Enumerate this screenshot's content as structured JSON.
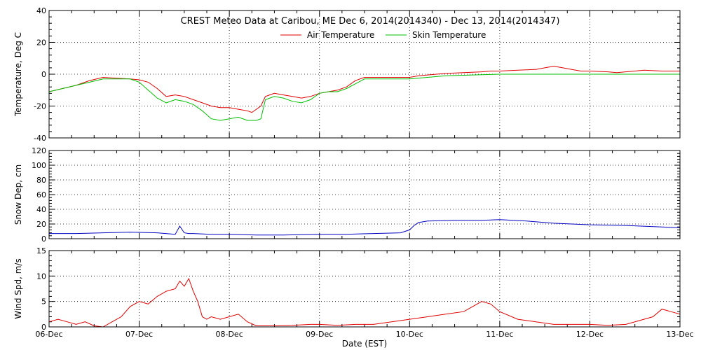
{
  "chart_data": {
    "type": "line",
    "title": "CREST Meteo Data at Caribou, ME   Dec  6, 2014(2014340) - Dec 13, 2014(2014347)",
    "xlabel": "Date (EST)",
    "x_ticks": [
      "06-Dec",
      "07-Dec",
      "08-Dec",
      "09-Dec",
      "10-Dec",
      "11-Dec",
      "12-Dec",
      "13-Dec"
    ],
    "x_range": [
      0,
      7
    ],
    "grid": true,
    "legend_placement": "top-center",
    "panels": [
      {
        "ylabel": "Temperature, Deg C",
        "ylim": [
          -40,
          40
        ],
        "y_ticks": [
          -40,
          -20,
          0,
          20,
          40
        ],
        "series": [
          {
            "name": "Air Temperature",
            "color": "#e00000",
            "x": [
              0,
              0.15,
              0.3,
              0.45,
              0.6,
              0.75,
              0.9,
              1.0,
              1.1,
              1.2,
              1.3,
              1.4,
              1.5,
              1.6,
              1.7,
              1.8,
              1.9,
              2.0,
              2.1,
              2.2,
              2.25,
              2.3,
              2.35,
              2.4,
              2.5,
              2.6,
              2.7,
              2.8,
              2.9,
              3.0,
              3.1,
              3.2,
              3.3,
              3.4,
              3.5,
              3.6,
              3.7,
              3.8,
              3.9,
              4.0,
              4.1,
              4.2,
              4.3,
              4.4,
              4.6,
              4.8,
              4.9,
              5.0,
              5.2,
              5.4,
              5.5,
              5.6,
              5.7,
              5.8,
              5.9,
              6.0,
              6.2,
              6.3,
              6.4,
              6.5,
              6.6,
              6.8,
              7.0
            ],
            "y": [
              -11,
              -9,
              -7,
              -4,
              -2,
              -2.5,
              -3,
              -3.5,
              -5,
              -9,
              -14,
              -13,
              -14,
              -16,
              -18,
              -20,
              -21,
              -21,
              -22,
              -23,
              -24,
              -22,
              -20,
              -14,
              -12,
              -13,
              -14,
              -15,
              -14,
              -12,
              -11,
              -10,
              -8,
              -4,
              -2,
              -2,
              -2,
              -2,
              -2,
              -2,
              -1,
              -0.5,
              0,
              0.5,
              1,
              1.5,
              2,
              2,
              2.5,
              3,
              4,
              5,
              4,
              3,
              2,
              2,
              1.5,
              1,
              1.5,
              2,
              2.5,
              2,
              2
            ]
          },
          {
            "name": "Skin Temperature",
            "color": "#00c000",
            "x": [
              0,
              0.15,
              0.3,
              0.45,
              0.6,
              0.75,
              0.9,
              1.0,
              1.1,
              1.2,
              1.3,
              1.4,
              1.5,
              1.6,
              1.7,
              1.8,
              1.9,
              2.0,
              2.1,
              2.2,
              2.3,
              2.35,
              2.4,
              2.5,
              2.6,
              2.7,
              2.8,
              2.9,
              3.0,
              3.1,
              3.2,
              3.3,
              3.4,
              3.5,
              3.6,
              3.8,
              4.0,
              4.2,
              4.4,
              5.0,
              6.0,
              7.0
            ],
            "y": [
              -11,
              -9,
              -7,
              -5,
              -3,
              -3,
              -3,
              -5,
              -10,
              -15,
              -18,
              -16,
              -17,
              -19,
              -23,
              -28,
              -29,
              -28,
              -27,
              -29,
              -29,
              -28,
              -16,
              -14,
              -15,
              -17,
              -18,
              -16,
              -12,
              -11,
              -11,
              -9,
              -6,
              -3,
              -3,
              -3,
              -3,
              -2,
              -1,
              0,
              0,
              0
            ]
          }
        ]
      },
      {
        "ylabel": "Snow Dep, cm",
        "ylim": [
          0,
          120
        ],
        "y_ticks": [
          0,
          20,
          40,
          60,
          80,
          100,
          120
        ],
        "series": [
          {
            "color": "#0000c0",
            "x": [
              0,
              0.3,
              0.6,
              0.9,
              1.2,
              1.4,
              1.45,
              1.5,
              1.55,
              1.6,
              1.8,
              2.0,
              2.3,
              2.6,
              3.0,
              3.3,
              3.6,
              3.9,
              4.0,
              4.05,
              4.1,
              4.2,
              4.5,
              4.8,
              5.0,
              5.3,
              5.6,
              6.0,
              6.4,
              6.8,
              7.0
            ],
            "y": [
              7,
              7,
              8,
              9,
              8,
              6,
              17,
              8,
              7,
              7,
              6,
              6,
              5,
              5,
              6,
              6,
              7,
              8,
              12,
              18,
              22,
              24,
              25,
              25,
              26,
              24,
              21,
              19,
              18,
              16,
              15
            ]
          }
        ]
      },
      {
        "ylabel": "Wind Spd, m/s",
        "ylim": [
          0,
          15
        ],
        "y_ticks": [
          0,
          5,
          10,
          15
        ],
        "series": [
          {
            "color": "#e00000",
            "x": [
              0,
              0.1,
              0.2,
              0.3,
              0.4,
              0.5,
              0.6,
              0.7,
              0.8,
              0.9,
              1.0,
              1.1,
              1.2,
              1.3,
              1.4,
              1.45,
              1.5,
              1.55,
              1.6,
              1.65,
              1.7,
              1.75,
              1.8,
              1.9,
              2.0,
              2.1,
              2.2,
              2.3,
              2.5,
              2.7,
              2.9,
              3.0,
              3.2,
              3.4,
              3.6,
              3.8,
              4.0,
              4.2,
              4.4,
              4.6,
              4.7,
              4.8,
              4.9,
              5.0,
              5.2,
              5.4,
              5.6,
              5.8,
              6.0,
              6.2,
              6.4,
              6.6,
              6.7,
              6.8,
              6.9,
              7.0
            ],
            "y": [
              1,
              1.5,
              1,
              0.5,
              1,
              0.2,
              0,
              1,
              2,
              4,
              5,
              4.5,
              6,
              7,
              7.5,
              9,
              8,
              9.5,
              7,
              5,
              2,
              1.5,
              2,
              1.5,
              2,
              2.5,
              1,
              0.2,
              0.2,
              0.3,
              0.5,
              0.5,
              0.3,
              0.5,
              0.5,
              1,
              1.5,
              2,
              2.5,
              3,
              4,
              5,
              4.5,
              3,
              1.5,
              1,
              0.5,
              0.5,
              0.5,
              0.3,
              0.5,
              1.5,
              2,
              3.5,
              3,
              2.5
            ]
          }
        ]
      }
    ]
  }
}
